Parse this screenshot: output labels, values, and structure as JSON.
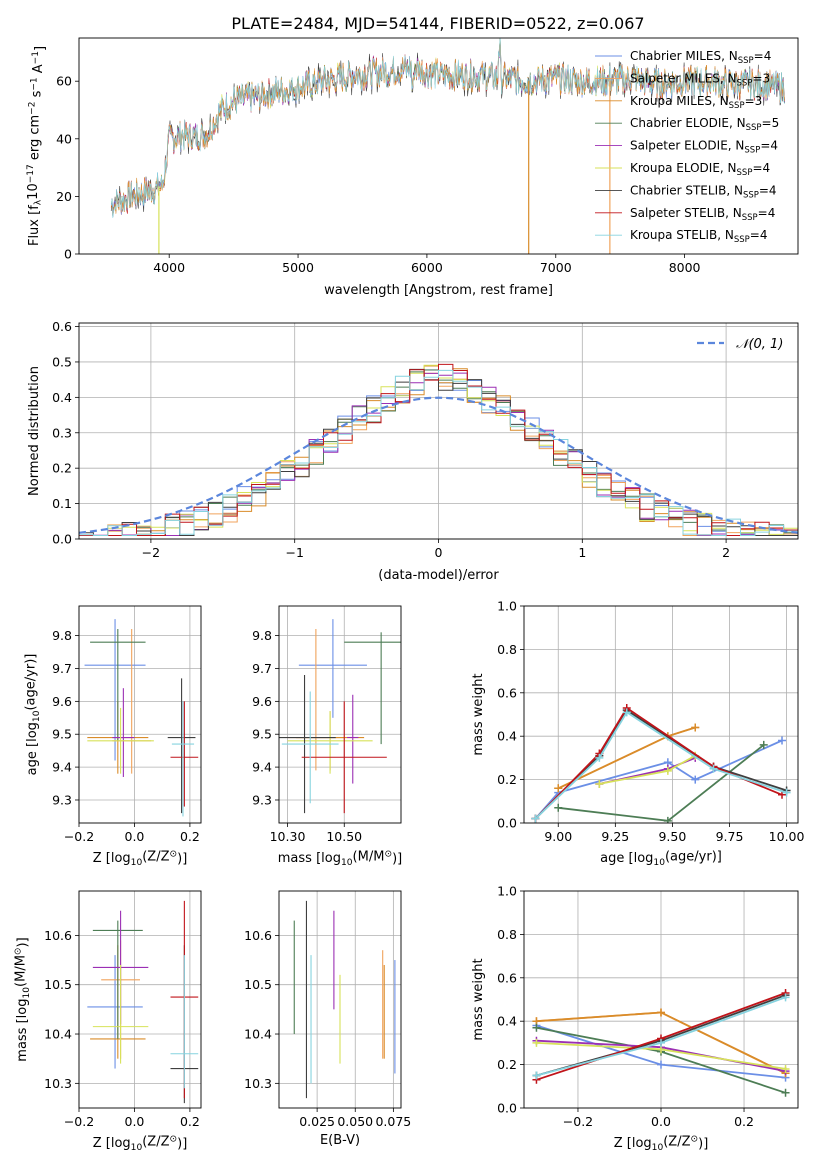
{
  "figure": {
    "title": "PLATE=2484, MJD=54144, FIBERID=0522, z=0.067"
  },
  "colors": {
    "chabrier_miles": "#6b8fe6",
    "salpeter_miles": "#f0a35c",
    "kroupa_miles": "#d98c2a",
    "chabrier_elodie": "#4d7d55",
    "salpeter_elodie": "#9b2fb4",
    "kroupa_elodie": "#d7e25a",
    "chabrier_stelib": "#3f3f3f",
    "salpeter_stelib": "#c0141a",
    "kroupa_stelib": "#86d3df"
  },
  "chart_data": [
    {
      "id": "spectrum",
      "type": "line",
      "xlabel": "wavelength [Angstrom, rest frame]",
      "ylabel_parts": [
        "Flux [f",
        "λ",
        "10",
        "−17",
        " erg cm",
        "−2",
        " s",
        "−1",
        " A",
        "−1",
        "]"
      ],
      "xlim": [
        3300,
        8880
      ],
      "ylim": [
        0,
        75
      ],
      "xticks": [
        4000,
        5000,
        6000,
        7000,
        8000
      ],
      "yticks": [
        0,
        20,
        40,
        60
      ],
      "legend_position": "top-right",
      "continuum": {
        "x": [
          3550,
          3700,
          3850,
          3950,
          4000,
          4100,
          4200,
          4300,
          4400,
          4500,
          4700,
          4900,
          5000,
          5200,
          5400,
          5600,
          5800,
          5900,
          6000,
          6200,
          6400,
          6600,
          6800,
          7000,
          7200,
          7400,
          7600,
          7800,
          8000,
          8200,
          8400,
          8600,
          8750
        ],
        "y": [
          17,
          20,
          22,
          24,
          40,
          41,
          41,
          42,
          50,
          53,
          55,
          57,
          58,
          60,
          62,
          63,
          64,
          65,
          63,
          62,
          62,
          61,
          60,
          61,
          60,
          60,
          61,
          59,
          60,
          60,
          59,
          59,
          58
        ]
      },
      "series": [
        {
          "name": "Chabrier MILES, N",
          "sub": "SSP",
          "suffix": "=4",
          "color_key": "chabrier_miles"
        },
        {
          "name": "Salpeter MILES, N",
          "sub": "SSP",
          "suffix": "=3",
          "color_key": "salpeter_miles"
        },
        {
          "name": "Kroupa MILES, N",
          "sub": "SSP",
          "suffix": "=3",
          "color_key": "kroupa_miles"
        },
        {
          "name": "Chabrier ELODIE, N",
          "sub": "SSP",
          "suffix": "=5",
          "color_key": "chabrier_elodie"
        },
        {
          "name": "Salpeter ELODIE, N",
          "sub": "SSP",
          "suffix": "=4",
          "color_key": "salpeter_elodie"
        },
        {
          "name": "Kroupa ELODIE, N",
          "sub": "SSP",
          "suffix": "=4",
          "color_key": "kroupa_elodie"
        },
        {
          "name": "Chabrier STELIB, N",
          "sub": "SSP",
          "suffix": "=4",
          "color_key": "chabrier_stelib"
        },
        {
          "name": "Salpeter STELIB, N",
          "sub": "SSP",
          "suffix": "=4",
          "color_key": "salpeter_stelib"
        },
        {
          "name": "Kroupa STELIB, N",
          "sub": "SSP",
          "suffix": "=4",
          "color_key": "kroupa_stelib"
        }
      ],
      "drops": [
        {
          "x": 3920,
          "color_key": "kroupa_elodie"
        },
        {
          "x": 6790,
          "color_key": "kroupa_miles"
        },
        {
          "x": 7420,
          "color_key": "salpeter_miles"
        }
      ]
    },
    {
      "id": "residuals",
      "type": "histogram",
      "xlabel": "(data-model)/error",
      "ylabel": "Normed distribution",
      "xlim": [
        -2.5,
        2.5
      ],
      "ylim": [
        0,
        0.61
      ],
      "xticks": [
        -2,
        -1,
        0,
        1,
        2
      ],
      "yticks": [
        0.0,
        0.1,
        0.2,
        0.3,
        0.4,
        0.5,
        0.6
      ],
      "grid": true,
      "legend_label": "𝒩(0, 1)",
      "legend_position": "top-right",
      "gaussian_color": "#5b86dc",
      "bin_width": 0.1
    },
    {
      "id": "age_vs_z",
      "type": "errorbar",
      "xlabel_parts": [
        "Z [log",
        "10",
        "(Z/Z",
        "⊙",
        ")]"
      ],
      "ylabel_parts": [
        "age  [log",
        "10",
        "(age/yr)]"
      ],
      "xlim": [
        -0.2,
        0.24
      ],
      "ylim": [
        9.23,
        9.89
      ],
      "xticks": [
        -0.2,
        0.0,
        0.2
      ],
      "xtick_labels": [
        "−0.2",
        "0.0",
        "0.2"
      ],
      "yticks": [
        9.3,
        9.4,
        9.5,
        9.6,
        9.7,
        9.8
      ],
      "grid": true,
      "points": [
        {
          "color_key": "chabrier_miles",
          "x": -0.07,
          "xerr": 0.11,
          "y": 9.71,
          "ylo": 9.42,
          "yhi": 9.85
        },
        {
          "color_key": "salpeter_miles",
          "x": -0.01,
          "xerr": 0.07,
          "y": 9.48,
          "ylo": 9.38,
          "yhi": 9.82
        },
        {
          "color_key": "kroupa_miles",
          "x": -0.06,
          "xerr": 0.11,
          "y": 9.49,
          "ylo": 9.38,
          "yhi": 9.6
        },
        {
          "color_key": "chabrier_elodie",
          "x": -0.06,
          "xerr": 0.1,
          "y": 9.78,
          "ylo": 9.48,
          "yhi": 9.82
        },
        {
          "color_key": "salpeter_elodie",
          "x": -0.04,
          "xerr": 0.04,
          "y": 9.49,
          "ylo": 9.37,
          "yhi": 9.64
        },
        {
          "color_key": "kroupa_elodie",
          "x": -0.05,
          "xerr": 0.12,
          "y": 9.48,
          "ylo": 9.38,
          "yhi": 9.58
        },
        {
          "color_key": "chabrier_stelib",
          "x": 0.17,
          "xerr": 0.05,
          "y": 9.49,
          "ylo": 9.26,
          "yhi": 9.67
        },
        {
          "color_key": "salpeter_stelib",
          "x": 0.18,
          "xerr": 0.05,
          "y": 9.43,
          "ylo": 9.28,
          "yhi": 9.6
        },
        {
          "color_key": "kroupa_stelib",
          "x": 0.175,
          "xerr": 0.04,
          "y": 9.47,
          "ylo": 9.25,
          "yhi": 9.6
        }
      ]
    },
    {
      "id": "age_vs_mass",
      "type": "errorbar",
      "xlabel_parts": [
        "mass [log",
        "10",
        "(M/M",
        "⊙",
        ")]"
      ],
      "xlim": [
        10.27,
        10.7
      ],
      "ylim": [
        9.23,
        9.89
      ],
      "xticks": [
        10.3,
        10.5
      ],
      "xtick_labels": [
        "10.30",
        "10.50"
      ],
      "yticks": [
        9.3,
        9.4,
        9.5,
        9.6,
        9.7,
        9.8
      ],
      "grid": true,
      "points": [
        {
          "color_key": "chabrier_miles",
          "x": 10.46,
          "xerr": 0.12,
          "y": 9.71,
          "ylo": 9.55,
          "yhi": 9.85
        },
        {
          "color_key": "salpeter_miles",
          "x": 10.4,
          "xerr": 0.1,
          "y": 9.49,
          "ylo": 9.39,
          "yhi": 9.82
        },
        {
          "color_key": "kroupa_miles",
          "x": 10.45,
          "xerr": 0.12,
          "y": 9.49,
          "ylo": 9.39,
          "yhi": 9.57
        },
        {
          "color_key": "chabrier_elodie",
          "x": 10.63,
          "xerr": 0.13,
          "y": 9.78,
          "ylo": 9.47,
          "yhi": 9.81
        },
        {
          "color_key": "salpeter_elodie",
          "x": 10.53,
          "xerr": 0.02,
          "y": 9.49,
          "ylo": 9.35,
          "yhi": 9.62
        },
        {
          "color_key": "kroupa_elodie",
          "x": 10.45,
          "xerr": 0.15,
          "y": 9.48,
          "ylo": 9.38,
          "yhi": 9.57
        },
        {
          "color_key": "chabrier_stelib",
          "x": 10.36,
          "xerr": 0.11,
          "y": 9.49,
          "ylo": 9.26,
          "yhi": 9.68
        },
        {
          "color_key": "salpeter_stelib",
          "x": 10.5,
          "xerr": 0.15,
          "y": 9.43,
          "ylo": 9.26,
          "yhi": 9.6
        },
        {
          "color_key": "kroupa_stelib",
          "x": 10.38,
          "xerr": 0.1,
          "y": 9.47,
          "ylo": 9.29,
          "yhi": 9.63
        }
      ]
    },
    {
      "id": "weight_vs_age",
      "type": "line",
      "xlabel_parts": [
        "age  [log",
        "10",
        "(age/yr)]"
      ],
      "ylabel": "mass weight",
      "xlim": [
        8.85,
        10.05
      ],
      "ylim": [
        0,
        1
      ],
      "xticks": [
        9.0,
        9.25,
        9.5,
        9.75,
        10.0
      ],
      "xtick_labels": [
        "9.00",
        "9.25",
        "9.50",
        "9.75",
        "10.00"
      ],
      "yticks": [
        0.0,
        0.2,
        0.4,
        0.6,
        0.8,
        1.0
      ],
      "grid": true,
      "series": [
        {
          "color_key": "chabrier_miles",
          "x": [
            8.9,
            9.0,
            9.48,
            9.6,
            9.98
          ],
          "y": [
            0.02,
            0.14,
            0.28,
            0.2,
            0.38
          ]
        },
        {
          "color_key": "salpeter_miles",
          "x": [
            9.0,
            9.48,
            9.6
          ],
          "y": [
            0.16,
            0.4,
            0.44
          ]
        },
        {
          "color_key": "kroupa_miles",
          "x": [
            9.0,
            9.48,
            9.6
          ],
          "y": [
            0.16,
            0.4,
            0.44
          ]
        },
        {
          "color_key": "chabrier_elodie",
          "x": [
            9.0,
            9.48,
            9.9
          ],
          "y": [
            0.07,
            0.01,
            0.36
          ]
        },
        {
          "color_key": "salpeter_elodie",
          "x": [
            9.18,
            9.48,
            9.6
          ],
          "y": [
            0.18,
            0.25,
            0.3
          ]
        },
        {
          "color_key": "kroupa_elodie",
          "x": [
            9.18,
            9.48,
            9.6
          ],
          "y": [
            0.18,
            0.24,
            0.31
          ]
        },
        {
          "color_key": "chabrier_stelib",
          "x": [
            8.9,
            9.18,
            9.3,
            9.68,
            10.0
          ],
          "y": [
            0.02,
            0.31,
            0.52,
            0.26,
            0.15
          ]
        },
        {
          "color_key": "salpeter_stelib",
          "x": [
            8.9,
            9.18,
            9.3,
            9.68,
            9.98
          ],
          "y": [
            0.02,
            0.32,
            0.53,
            0.26,
            0.13
          ]
        },
        {
          "color_key": "kroupa_stelib",
          "x": [
            8.9,
            9.18,
            9.3,
            9.68,
            10.0
          ],
          "y": [
            0.02,
            0.3,
            0.51,
            0.25,
            0.14
          ]
        }
      ]
    },
    {
      "id": "mass_vs_z",
      "type": "errorbar",
      "xlabel_parts": [
        "Z [log",
        "10",
        "(Z/Z",
        "⊙",
        ")]"
      ],
      "ylabel_parts": [
        "mass [log",
        "10",
        "(M/M",
        "⊙",
        ")]"
      ],
      "xlim": [
        -0.2,
        0.24
      ],
      "ylim": [
        10.25,
        10.69
      ],
      "xticks": [
        -0.2,
        0.0,
        0.2
      ],
      "xtick_labels": [
        "−0.2",
        "0.0",
        "0.2"
      ],
      "yticks": [
        10.3,
        10.4,
        10.5,
        10.6
      ],
      "grid": true,
      "points": [
        {
          "color_key": "chabrier_miles",
          "x": -0.07,
          "xerr": 0.1,
          "y": 10.455,
          "ylo": 10.33,
          "yhi": 10.56
        },
        {
          "color_key": "salpeter_miles",
          "x": -0.05,
          "xerr": 0.07,
          "y": 10.51,
          "ylo": 10.35,
          "yhi": 10.59
        },
        {
          "color_key": "kroupa_miles",
          "x": -0.06,
          "xerr": 0.1,
          "y": 10.39,
          "ylo": 10.35,
          "yhi": 10.58
        },
        {
          "color_key": "chabrier_elodie",
          "x": -0.06,
          "xerr": 0.09,
          "y": 10.61,
          "ylo": 10.39,
          "yhi": 10.63
        },
        {
          "color_key": "salpeter_elodie",
          "x": -0.05,
          "xerr": 0.1,
          "y": 10.535,
          "ylo": 10.42,
          "yhi": 10.65
        },
        {
          "color_key": "kroupa_elodie",
          "x": -0.05,
          "xerr": 0.1,
          "y": 10.415,
          "ylo": 10.34,
          "yhi": 10.54
        },
        {
          "color_key": "chabrier_stelib",
          "x": 0.18,
          "xerr": 0.05,
          "y": 10.33,
          "ylo": 10.26,
          "yhi": 10.58
        },
        {
          "color_key": "salpeter_stelib",
          "x": 0.18,
          "xerr": 0.05,
          "y": 10.475,
          "ylo": 10.27,
          "yhi": 10.67
        },
        {
          "color_key": "kroupa_stelib",
          "x": 0.18,
          "xerr": 0.05,
          "y": 10.36,
          "ylo": 10.29,
          "yhi": 10.56
        }
      ]
    },
    {
      "id": "mass_vs_ebv",
      "type": "errorbar",
      "xlabel": "E(B-V)",
      "xlim": [
        0.0,
        0.08
      ],
      "ylim": [
        10.25,
        10.69
      ],
      "xticks": [
        0.025,
        0.05,
        0.075
      ],
      "xtick_labels": [
        "0.025",
        "0.050",
        "0.075"
      ],
      "yticks": [
        10.3,
        10.4,
        10.5,
        10.6
      ],
      "grid": true,
      "points": [
        {
          "color_key": "chabrier_elodie",
          "x": 0.01,
          "ylo": 10.4,
          "yhi": 10.63
        },
        {
          "color_key": "chabrier_stelib",
          "x": 0.018,
          "ylo": 10.27,
          "yhi": 10.67
        },
        {
          "color_key": "kroupa_stelib",
          "x": 0.021,
          "ylo": 10.3,
          "yhi": 10.56
        },
        {
          "color_key": "salpeter_elodie",
          "x": 0.036,
          "ylo": 10.45,
          "yhi": 10.65
        },
        {
          "color_key": "kroupa_elodie",
          "x": 0.04,
          "ylo": 10.34,
          "yhi": 10.52
        },
        {
          "color_key": "salpeter_miles",
          "x": 0.068,
          "ylo": 10.35,
          "yhi": 10.57
        },
        {
          "color_key": "kroupa_miles",
          "x": 0.069,
          "ylo": 10.35,
          "yhi": 10.54
        },
        {
          "color_key": "chabrier_miles",
          "x": 0.076,
          "ylo": 10.32,
          "yhi": 10.55
        }
      ]
    },
    {
      "id": "weight_vs_z",
      "type": "line",
      "xlabel_parts": [
        "Z [log",
        "10",
        "(Z/Z",
        "⊙",
        ")]"
      ],
      "ylabel": "mass weight",
      "xlim": [
        -0.33,
        0.33
      ],
      "ylim": [
        0,
        1
      ],
      "xticks": [
        -0.2,
        0.0,
        0.2
      ],
      "xtick_labels": [
        "−0.2",
        "0.0",
        "0.2"
      ],
      "yticks": [
        0.0,
        0.2,
        0.4,
        0.6,
        0.8,
        1.0
      ],
      "grid": true,
      "series": [
        {
          "color_key": "chabrier_miles",
          "x": [
            -0.3,
            0.0,
            0.3
          ],
          "y": [
            0.38,
            0.2,
            0.14
          ]
        },
        {
          "color_key": "salpeter_miles",
          "x": [
            -0.3,
            0.0,
            0.3
          ],
          "y": [
            0.4,
            0.44,
            0.16
          ]
        },
        {
          "color_key": "kroupa_miles",
          "x": [
            -0.3,
            0.0,
            0.3
          ],
          "y": [
            0.4,
            0.44,
            0.16
          ]
        },
        {
          "color_key": "chabrier_elodie",
          "x": [
            -0.3,
            0.0,
            0.3
          ],
          "y": [
            0.37,
            0.26,
            0.07
          ]
        },
        {
          "color_key": "salpeter_elodie",
          "x": [
            -0.3,
            0.0,
            0.3
          ],
          "y": [
            0.31,
            0.28,
            0.17
          ]
        },
        {
          "color_key": "kroupa_elodie",
          "x": [
            -0.3,
            0.0,
            0.3
          ],
          "y": [
            0.3,
            0.27,
            0.18
          ]
        },
        {
          "color_key": "chabrier_stelib",
          "x": [
            -0.3,
            0.0,
            0.3
          ],
          "y": [
            0.15,
            0.31,
            0.52
          ]
        },
        {
          "color_key": "salpeter_stelib",
          "x": [
            -0.3,
            0.0,
            0.3
          ],
          "y": [
            0.13,
            0.32,
            0.53
          ]
        },
        {
          "color_key": "kroupa_stelib",
          "x": [
            -0.3,
            0.0,
            0.3
          ],
          "y": [
            0.15,
            0.3,
            0.51
          ]
        }
      ]
    }
  ]
}
